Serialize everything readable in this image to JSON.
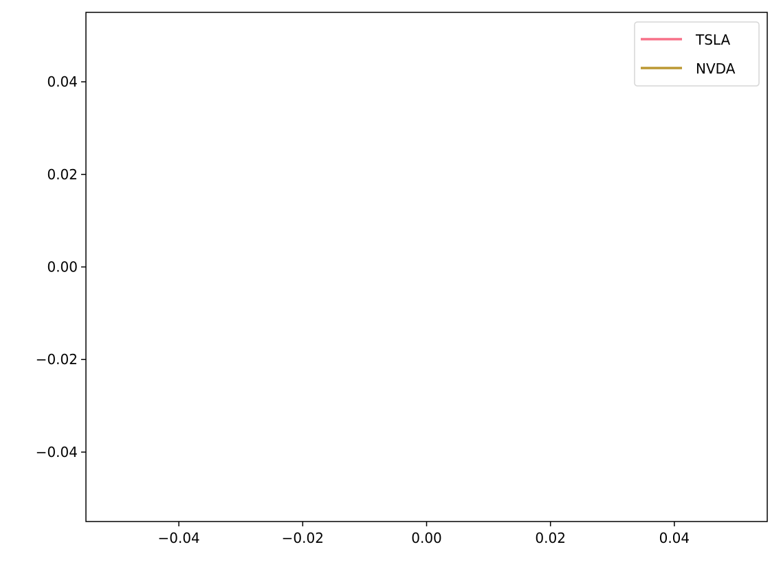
{
  "chart_data": {
    "type": "line",
    "title": "",
    "xlabel": "",
    "ylabel": "",
    "xlim": [
      -0.055,
      0.055
    ],
    "ylim": [
      -0.055,
      0.055
    ],
    "xticks": [
      -0.04,
      -0.02,
      0.0,
      0.02,
      0.04
    ],
    "yticks": [
      -0.04,
      -0.02,
      0.0,
      0.02,
      0.04
    ],
    "xtick_labels": [
      "−0.04",
      "−0.02",
      "0.00",
      "0.02",
      "0.04"
    ],
    "ytick_labels": [
      "−0.04",
      "−0.02",
      "0.00",
      "0.02",
      "0.04"
    ],
    "grid": false,
    "legend_position": "top-right",
    "series": [
      {
        "name": "TSLA",
        "color": "#f77189",
        "x": [],
        "y": []
      },
      {
        "name": "NVDA",
        "color": "#bb9832",
        "x": [],
        "y": []
      }
    ]
  }
}
